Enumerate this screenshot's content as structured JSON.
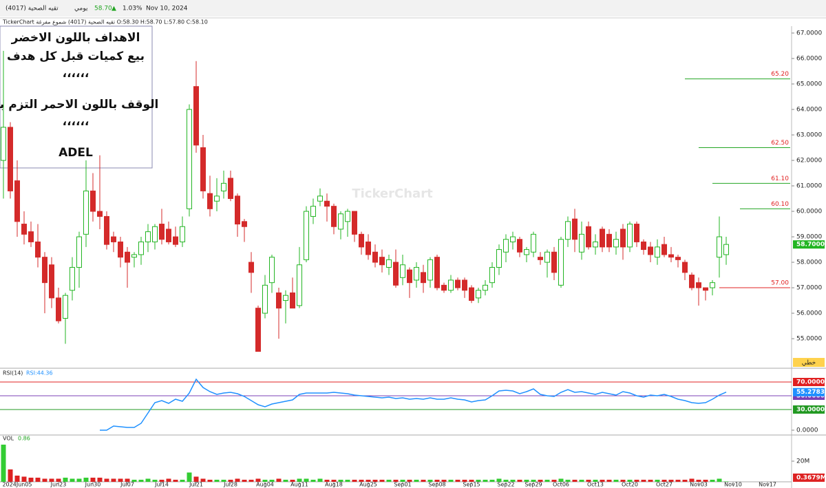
{
  "header": {
    "name": "تقيه الصحية (4017)",
    "period": "يومي",
    "price": "58.70",
    "arrow": "▲",
    "change": "1.03%",
    "date": "Nov 10, 2024",
    "legend": "TickerChart تقيه الصحية (4017) شموع مفرغة O:58.30 H:58.70 L:57.80 C:58.10",
    "watermark": "TickerChart",
    "button": "خطي"
  },
  "note": {
    "lines": [
      "الاهداف باللون الاخضر",
      "بيع كميات قبل كل هدف",
      "،،،،،،",
      "الوقف باللون الاحمر التزم به",
      "،،،،،،",
      "ADEL"
    ]
  },
  "chart_data": {
    "type": "candlestick",
    "up_color": "#22b522",
    "down_color": "#d42a2a",
    "xlim": [
      -0.5,
      114.5
    ],
    "ylim": [
      53.84,
      67.27
    ],
    "xticks": [
      {
        "value": 2,
        "label": "2024Jun05"
      },
      {
        "value": 8,
        "label": "Jun23"
      },
      {
        "value": 13,
        "label": "Jun30"
      },
      {
        "value": 18,
        "label": "Jul07"
      },
      {
        "value": 23,
        "label": "Jul14"
      },
      {
        "value": 28,
        "label": "Jul21"
      },
      {
        "value": 33,
        "label": "Jul28"
      },
      {
        "value": 38,
        "label": "Aug04"
      },
      {
        "value": 43,
        "label": "Aug11"
      },
      {
        "value": 48,
        "label": "Aug18"
      },
      {
        "value": 53,
        "label": "Aug25"
      },
      {
        "value": 58,
        "label": "Sep01"
      },
      {
        "value": 63,
        "label": "Sep08"
      },
      {
        "value": 68,
        "label": "Sep15"
      },
      {
        "value": 73,
        "label": "Sep22"
      },
      {
        "value": 77,
        "label": "Sep29"
      },
      {
        "value": 81,
        "label": "Oct06"
      },
      {
        "value": 86,
        "label": "Oct13"
      },
      {
        "value": 91,
        "label": "Oct20"
      },
      {
        "value": 96,
        "label": "Oct27"
      },
      {
        "value": 101,
        "label": "Nov03"
      },
      {
        "value": 106,
        "label": "Nov10"
      },
      {
        "value": 111,
        "label": "Nov17"
      }
    ],
    "yticks": [
      {
        "value": 55,
        "label": "55.0000"
      },
      {
        "value": 56,
        "label": "56.0000"
      },
      {
        "value": 57,
        "label": "57.0000"
      },
      {
        "value": 58,
        "label": "58.0000"
      },
      {
        "value": 59,
        "label": "59.0000"
      },
      {
        "value": 60,
        "label": "60.0000"
      },
      {
        "value": 61,
        "label": "61.0000"
      },
      {
        "value": 62,
        "label": "62.0000"
      },
      {
        "value": 63,
        "label": "63.0000"
      },
      {
        "value": 64,
        "label": "64.0000"
      },
      {
        "value": 65,
        "label": "65.0000"
      },
      {
        "value": 66,
        "label": "66.0000"
      },
      {
        "value": 67,
        "label": "67.0000"
      }
    ],
    "last_price": {
      "value": 58.7,
      "label": "58.7000"
    },
    "levels": [
      {
        "value": 65.2,
        "label": "65.20",
        "color": "#22a522",
        "start": 99
      },
      {
        "value": 62.5,
        "label": "62.50",
        "color": "#22a522",
        "start": 101
      },
      {
        "value": 61.1,
        "label": "61.10",
        "color": "#22a522",
        "start": 103
      },
      {
        "value": 60.1,
        "label": "60.10",
        "color": "#22a522",
        "start": 107
      },
      {
        "value": 57,
        "label": "57.00",
        "color": "#e02020",
        "start": 104
      }
    ],
    "candles": [
      [
        62.0,
        66.3,
        60.5,
        63.3
      ],
      [
        63.3,
        63.5,
        60.5,
        60.8
      ],
      [
        61.2,
        62,
        59,
        59.6
      ],
      [
        59.5,
        60,
        58.7,
        59.1
      ],
      [
        59.2,
        59.6,
        58.6,
        58.8
      ],
      [
        58.8,
        59.5,
        57.8,
        58.2
      ],
      [
        58.2,
        58.4,
        56,
        57.2
      ],
      [
        57.9,
        58.2,
        56.2,
        56.6
      ],
      [
        56.6,
        57,
        55.6,
        55.7
      ],
      [
        55.8,
        56.8,
        54.8,
        56.7
      ],
      [
        56.9,
        58.2,
        56.5,
        57.8
      ],
      [
        57.8,
        59.2,
        57,
        59
      ],
      [
        59.1,
        62,
        58.6,
        60.8
      ],
      [
        60.8,
        61.5,
        59.6,
        60
      ],
      [
        60,
        62.2,
        59.3,
        59.8
      ],
      [
        59.8,
        60,
        58.5,
        58.7
      ],
      [
        59,
        59.2,
        58.4,
        58.8
      ],
      [
        58.8,
        59,
        57.8,
        58.2
      ],
      [
        58.4,
        58.6,
        57,
        58
      ],
      [
        58.2,
        58.4,
        57.8,
        58.3
      ],
      [
        58.3,
        59,
        57.9,
        58.8
      ],
      [
        58.8,
        59.5,
        58.4,
        59.2
      ],
      [
        58.8,
        59.5,
        58.5,
        59.4
      ],
      [
        59.5,
        60.1,
        58.7,
        58.9
      ],
      [
        59.3,
        59.6,
        58.7,
        58.8
      ],
      [
        59,
        59.4,
        58.6,
        58.7
      ],
      [
        58.8,
        59.8,
        58.6,
        59.4
      ],
      [
        60.1,
        64.2,
        59.8,
        64
      ],
      [
        64.9,
        65.9,
        62.3,
        62.6
      ],
      [
        62.5,
        63,
        60.5,
        60.8
      ],
      [
        60.7,
        61.4,
        59.8,
        60.1
      ],
      [
        60.4,
        61.3,
        60,
        60.6
      ],
      [
        60.8,
        61.6,
        60.5,
        61.1
      ],
      [
        61.3,
        61.6,
        60.4,
        60.5
      ],
      [
        60.6,
        60.7,
        59,
        59.5
      ],
      [
        59.6,
        59.7,
        58.8,
        59.4
      ],
      [
        58,
        58.4,
        56.8,
        57.6
      ],
      [
        56.2,
        56.3,
        54.5,
        54.5
      ],
      [
        56,
        57.5,
        55.8,
        57.1
      ],
      [
        57.2,
        58.3,
        56.8,
        58.2
      ],
      [
        56.8,
        57,
        55,
        56.2
      ],
      [
        56.5,
        56.9,
        55.6,
        56.7
      ],
      [
        56.8,
        57.4,
        56.3,
        56.2
      ],
      [
        56.3,
        58.6,
        56.2,
        57.9
      ],
      [
        58.1,
        60.2,
        58,
        60
      ],
      [
        59.8,
        60.5,
        59.5,
        60.2
      ],
      [
        60.4,
        60.9,
        60.2,
        60.6
      ],
      [
        60.4,
        60.7,
        59.6,
        60.2
      ],
      [
        60.2,
        60.3,
        59.1,
        59.4
      ],
      [
        59.3,
        60,
        58.9,
        59.9
      ],
      [
        59.6,
        60.1,
        59,
        60
      ],
      [
        60,
        60,
        58.8,
        59.1
      ],
      [
        59.1,
        59.2,
        58.3,
        58.6
      ],
      [
        58.8,
        59.1,
        58.1,
        58.3
      ],
      [
        58.4,
        58.7,
        57.8,
        58.0
      ],
      [
        58.2,
        58.5,
        57.6,
        57.9
      ],
      [
        57.8,
        58.3,
        57.5,
        58.1
      ],
      [
        58,
        58.5,
        57,
        57.1
      ],
      [
        57.4,
        58.3,
        57.1,
        57.9
      ],
      [
        57.7,
        57.8,
        56.6,
        57.2
      ],
      [
        57.3,
        58,
        57,
        57.8
      ],
      [
        57.6,
        57.9,
        56.8,
        57.2
      ],
      [
        57.3,
        58.2,
        57,
        58.1
      ],
      [
        58.2,
        58.3,
        56.9,
        57
      ],
      [
        57.1,
        57.2,
        56.8,
        56.9
      ],
      [
        56.9,
        57.5,
        56.8,
        57.3
      ],
      [
        57.3,
        57.4,
        56.9,
        57.0
      ],
      [
        57.3,
        57.4,
        56.6,
        56.9
      ],
      [
        57,
        57.1,
        56.4,
        56.5
      ],
      [
        56.6,
        57,
        56.4,
        56.9
      ],
      [
        56.9,
        57.3,
        56.7,
        57.1
      ],
      [
        57.2,
        58,
        57,
        57.8
      ],
      [
        57.8,
        58.7,
        57.5,
        58.5
      ],
      [
        58.4,
        59.1,
        58,
        58.9
      ],
      [
        58.8,
        59.2,
        58.5,
        59
      ],
      [
        58.9,
        59,
        58.2,
        58.4
      ],
      [
        58.3,
        58.6,
        58,
        58.5
      ],
      [
        58.4,
        59.2,
        58.2,
        59.1
      ],
      [
        58.2,
        58.4,
        57.9,
        58.1
      ],
      [
        58.0,
        58.5,
        57.4,
        58.4
      ],
      [
        58.4,
        58.6,
        57.3,
        57.6
      ],
      [
        57.1,
        59,
        57,
        58.9
      ],
      [
        58.9,
        59.8,
        58.6,
        59.6
      ],
      [
        59.7,
        60.1,
        58.4,
        58.9
      ],
      [
        58.4,
        59.6,
        58.1,
        59.1
      ],
      [
        59.4,
        59.6,
        58.5,
        58.6
      ],
      [
        58.6,
        59.1,
        58.3,
        58.8
      ],
      [
        59.3,
        59.4,
        58.4,
        58.6
      ],
      [
        59.1,
        59.3,
        58.4,
        58.6
      ],
      [
        58.6,
        59.2,
        58.3,
        58.9
      ],
      [
        59.3,
        59.5,
        58.1,
        58.6
      ],
      [
        58.6,
        59.6,
        58.4,
        59.5
      ],
      [
        59.5,
        59.6,
        58.6,
        58.8
      ],
      [
        58.8,
        58.9,
        58.3,
        58.5
      ],
      [
        58.6,
        58.8,
        58,
        58.3
      ],
      [
        58.2,
        58.9,
        57.9,
        58.6
      ],
      [
        58.7,
        59,
        58.2,
        58.3
      ],
      [
        58.3,
        58.6,
        58,
        58.2
      ],
      [
        58.2,
        58.3,
        57.8,
        58.1
      ],
      [
        58,
        58.1,
        57.3,
        57.6
      ],
      [
        57.5,
        57.6,
        56.9,
        57.0
      ],
      [
        57.2,
        57.4,
        56.3,
        57
      ],
      [
        57,
        57,
        56.5,
        56.9
      ],
      [
        57,
        57.3,
        56.7,
        57.2
      ],
      [
        58.2,
        59.8,
        57.4,
        59
      ],
      [
        58.3,
        59,
        57.9,
        58.7
      ]
    ],
    "rsi": {
      "label": "RSI(14)",
      "value_text": "RSI:44.36",
      "color": "#1e90ff",
      "ylim": [
        -7,
        88
      ],
      "values": [
        null,
        null,
        null,
        null,
        null,
        null,
        null,
        null,
        null,
        null,
        null,
        null,
        null,
        null,
        0,
        0,
        6,
        5,
        4,
        4,
        10,
        25,
        40,
        43,
        39,
        45,
        42,
        54,
        74,
        62,
        56,
        52,
        54,
        55,
        53,
        49,
        43,
        37,
        34,
        38,
        40,
        42,
        44,
        52,
        54,
        54,
        54,
        54,
        55,
        54,
        53,
        51,
        50,
        49,
        48,
        47,
        48,
        46,
        47,
        45,
        46,
        45,
        47,
        45,
        45,
        47,
        45,
        44,
        41,
        43,
        44,
        50,
        57,
        58,
        57,
        53,
        56,
        60,
        52,
        50,
        49,
        55,
        59,
        55,
        56,
        54,
        52,
        55,
        53,
        51,
        56,
        54,
        50,
        48,
        51,
        50,
        52,
        49,
        45,
        43,
        40,
        39,
        40,
        45,
        51,
        55.28
      ],
      "last": {
        "value": 55.2783,
        "label": "55.2783"
      },
      "levels": [
        {
          "value": 70,
          "label": "70.0000",
          "color": "#e02020"
        },
        {
          "value": 50,
          "label": "50.0000",
          "color": "#7b3fb5"
        },
        {
          "value": 30,
          "label": "30.0000",
          "color": "#229922"
        }
      ],
      "yticks": [
        {
          "value": 0,
          "label": "0.0000"
        }
      ]
    },
    "volume": {
      "label": "VOL",
      "value_text": "0.86",
      "ylim": [
        0,
        44
      ],
      "values": [
        36,
        12,
        6,
        5,
        4,
        4,
        3,
        3,
        3,
        4,
        3,
        3,
        4,
        4,
        4,
        3,
        3,
        3,
        3,
        2,
        2,
        3,
        2,
        2,
        3,
        2,
        2,
        9,
        5,
        3,
        2,
        2,
        2,
        2,
        3,
        2,
        2,
        3,
        2,
        2,
        3,
        2,
        2,
        3,
        3,
        2,
        3,
        2,
        2,
        2,
        2,
        2,
        2,
        2,
        2,
        2,
        2,
        2,
        2,
        2,
        2,
        2,
        2,
        2,
        2,
        2,
        2,
        2,
        2,
        2,
        2,
        2,
        3,
        2,
        2,
        2,
        2,
        2,
        2,
        2,
        2,
        3,
        2,
        2,
        2,
        2,
        2,
        2,
        2,
        2,
        2,
        2,
        2,
        2,
        2,
        2,
        2,
        2,
        2,
        2,
        3,
        2,
        2,
        2,
        3,
        0.3679
      ],
      "yticks": [
        {
          "value": 20,
          "label": "20M"
        }
      ],
      "last": {
        "value": 0.3679,
        "label": "0.3679M"
      }
    }
  }
}
